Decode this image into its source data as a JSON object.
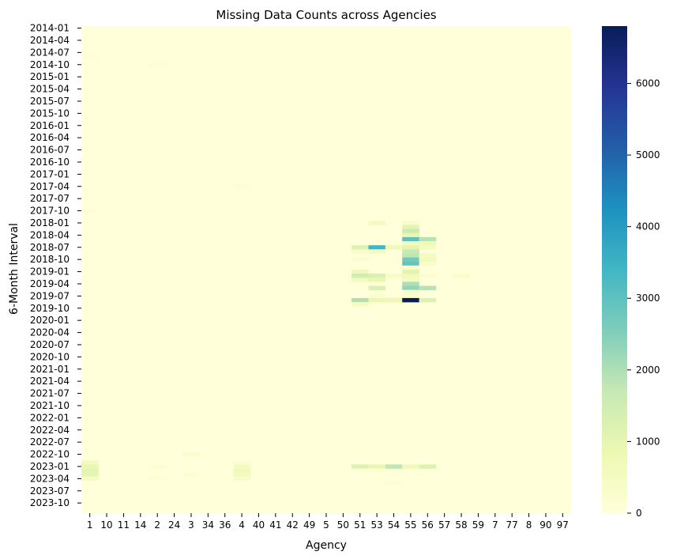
{
  "chart_data": {
    "type": "heatmap",
    "title": "Missing Data Counts across Agencies",
    "xlabel": "Agency",
    "ylabel": "6-Month Interval",
    "x_categories": [
      "1",
      "10",
      "11",
      "14",
      "2",
      "24",
      "3",
      "34",
      "36",
      "4",
      "40",
      "41",
      "42",
      "49",
      "5",
      "50",
      "51",
      "53",
      "54",
      "55",
      "56",
      "57",
      "58",
      "59",
      "7",
      "77",
      "8",
      "90",
      "97"
    ],
    "y_rows": [
      "2014-01",
      "2014-02",
      "2014-03",
      "2014-04",
      "2014-05",
      "2014-06",
      "2014-07",
      "2014-08",
      "2014-09",
      "2014-10",
      "2014-11",
      "2014-12",
      "2015-01",
      "2015-02",
      "2015-03",
      "2015-04",
      "2015-05",
      "2015-06",
      "2015-07",
      "2015-08",
      "2015-09",
      "2015-10",
      "2015-11",
      "2015-12",
      "2016-01",
      "2016-02",
      "2016-03",
      "2016-04",
      "2016-05",
      "2016-06",
      "2016-07",
      "2016-08",
      "2016-09",
      "2016-10",
      "2016-11",
      "2016-12",
      "2017-01",
      "2017-02",
      "2017-03",
      "2017-04",
      "2017-05",
      "2017-06",
      "2017-07",
      "2017-08",
      "2017-09",
      "2017-10",
      "2017-11",
      "2017-12",
      "2018-01",
      "2018-02",
      "2018-03",
      "2018-04",
      "2018-05",
      "2018-06",
      "2018-07",
      "2018-08",
      "2018-09",
      "2018-10",
      "2018-11",
      "2018-12",
      "2019-01",
      "2019-02",
      "2019-03",
      "2019-04",
      "2019-05",
      "2019-06",
      "2019-07",
      "2019-08",
      "2019-09",
      "2019-10",
      "2019-11",
      "2019-12",
      "2020-01",
      "2020-02",
      "2020-03",
      "2020-04",
      "2020-05",
      "2020-06",
      "2020-07",
      "2020-08",
      "2020-09",
      "2020-10",
      "2020-11",
      "2020-12",
      "2021-01",
      "2021-02",
      "2021-03",
      "2021-04",
      "2021-05",
      "2021-06",
      "2021-07",
      "2021-08",
      "2021-09",
      "2021-10",
      "2021-11",
      "2021-12",
      "2022-01",
      "2022-02",
      "2022-03",
      "2022-04",
      "2022-05",
      "2022-06",
      "2022-07",
      "2022-08",
      "2022-09",
      "2022-10",
      "2022-11",
      "2022-12",
      "2023-01",
      "2023-02",
      "2023-03",
      "2023-04",
      "2023-05",
      "2023-06",
      "2023-07",
      "2023-08",
      "2023-09",
      "2023-10",
      "2023-11",
      "2023-12"
    ],
    "y_tick_labels": [
      "2014-01",
      "2014-04",
      "2014-07",
      "2014-10",
      "2015-01",
      "2015-04",
      "2015-07",
      "2015-10",
      "2016-01",
      "2016-04",
      "2016-07",
      "2016-10",
      "2017-01",
      "2017-04",
      "2017-07",
      "2017-10",
      "2018-01",
      "2018-04",
      "2018-07",
      "2018-10",
      "2019-01",
      "2019-04",
      "2019-07",
      "2019-10",
      "2020-01",
      "2020-04",
      "2020-07",
      "2020-10",
      "2021-01",
      "2021-04",
      "2021-07",
      "2021-10",
      "2022-01",
      "2022-04",
      "2022-07",
      "2022-10",
      "2023-01",
      "2023-04",
      "2023-07",
      "2023-10"
    ],
    "colorbar": {
      "min": 0,
      "max": 6800,
      "ticks": [
        0,
        1000,
        2000,
        3000,
        4000,
        5000,
        6000
      ],
      "colormap": "YlGnBu"
    },
    "default_value": 0,
    "cells": [
      {
        "row": "2014-08",
        "col": "1",
        "value": 80
      },
      {
        "row": "2014-10",
        "col": "2",
        "value": 100
      },
      {
        "row": "2017-04",
        "col": "4",
        "value": 80
      },
      {
        "row": "2017-10",
        "col": "1",
        "value": 80
      },
      {
        "row": "2018-01",
        "col": "53",
        "value": 500
      },
      {
        "row": "2018-01",
        "col": "55",
        "value": 350
      },
      {
        "row": "2018-02",
        "col": "55",
        "value": 1100
      },
      {
        "row": "2018-03",
        "col": "55",
        "value": 1600
      },
      {
        "row": "2018-04",
        "col": "55",
        "value": 900
      },
      {
        "row": "2018-05",
        "col": "55",
        "value": 3000
      },
      {
        "row": "2018-05",
        "col": "56",
        "value": 1900
      },
      {
        "row": "2018-06",
        "col": "55",
        "value": 500
      },
      {
        "row": "2018-06",
        "col": "56",
        "value": 700
      },
      {
        "row": "2018-07",
        "col": "51",
        "value": 1200
      },
      {
        "row": "2018-07",
        "col": "53",
        "value": 3400
      },
      {
        "row": "2018-07",
        "col": "54",
        "value": 700
      },
      {
        "row": "2018-07",
        "col": "55",
        "value": 1000
      },
      {
        "row": "2018-07",
        "col": "56",
        "value": 500
      },
      {
        "row": "2018-08",
        "col": "51",
        "value": 350
      },
      {
        "row": "2018-08",
        "col": "53",
        "value": 500
      },
      {
        "row": "2018-08",
        "col": "55",
        "value": 1700
      },
      {
        "row": "2018-09",
        "col": "55",
        "value": 1800
      },
      {
        "row": "2018-09",
        "col": "56",
        "value": 500
      },
      {
        "row": "2018-10",
        "col": "51",
        "value": 200
      },
      {
        "row": "2018-10",
        "col": "55",
        "value": 2700
      },
      {
        "row": "2018-10",
        "col": "56",
        "value": 600
      },
      {
        "row": "2018-11",
        "col": "55",
        "value": 2900
      },
      {
        "row": "2018-11",
        "col": "56",
        "value": 300
      },
      {
        "row": "2018-12",
        "col": "55",
        "value": 250
      },
      {
        "row": "2019-01",
        "col": "51",
        "value": 700
      },
      {
        "row": "2019-01",
        "col": "55",
        "value": 1100
      },
      {
        "row": "2019-02",
        "col": "51",
        "value": 1500
      },
      {
        "row": "2019-02",
        "col": "53",
        "value": 1300
      },
      {
        "row": "2019-02",
        "col": "54",
        "value": 400
      },
      {
        "row": "2019-02",
        "col": "55",
        "value": 700
      },
      {
        "row": "2019-02",
        "col": "56",
        "value": 200
      },
      {
        "row": "2019-02",
        "col": "58",
        "value": 300
      },
      {
        "row": "2019-03",
        "col": "51",
        "value": 600
      },
      {
        "row": "2019-03",
        "col": "53",
        "value": 900
      },
      {
        "row": "2019-03",
        "col": "55",
        "value": 500
      },
      {
        "row": "2019-04",
        "col": "55",
        "value": 2000
      },
      {
        "row": "2019-05",
        "col": "53",
        "value": 1300
      },
      {
        "row": "2019-05",
        "col": "55",
        "value": 2300
      },
      {
        "row": "2019-05",
        "col": "56",
        "value": 1900
      },
      {
        "row": "2019-06",
        "col": "55",
        "value": 300
      },
      {
        "row": "2019-07",
        "col": "53",
        "value": 200
      },
      {
        "row": "2019-07",
        "col": "55",
        "value": 250
      },
      {
        "row": "2019-08",
        "col": "51",
        "value": 2000
      },
      {
        "row": "2019-08",
        "col": "53",
        "value": 900
      },
      {
        "row": "2019-08",
        "col": "54",
        "value": 800
      },
      {
        "row": "2019-08",
        "col": "55",
        "value": 6800
      },
      {
        "row": "2019-08",
        "col": "56",
        "value": 1200
      },
      {
        "row": "2019-09",
        "col": "51",
        "value": 500
      },
      {
        "row": "2022-10",
        "col": "3",
        "value": 300
      },
      {
        "row": "2022-12",
        "col": "1",
        "value": 600
      },
      {
        "row": "2022-12",
        "col": "4",
        "value": 150
      },
      {
        "row": "2023-01",
        "col": "1",
        "value": 900
      },
      {
        "row": "2023-01",
        "col": "2",
        "value": 150
      },
      {
        "row": "2023-01",
        "col": "4",
        "value": 500
      },
      {
        "row": "2023-01",
        "col": "51",
        "value": 1200
      },
      {
        "row": "2023-01",
        "col": "53",
        "value": 900
      },
      {
        "row": "2023-01",
        "col": "54",
        "value": 1800
      },
      {
        "row": "2023-01",
        "col": "55",
        "value": 700
      },
      {
        "row": "2023-01",
        "col": "56",
        "value": 1200
      },
      {
        "row": "2023-02",
        "col": "1",
        "value": 1100
      },
      {
        "row": "2023-02",
        "col": "4",
        "value": 700
      },
      {
        "row": "2023-02",
        "col": "51",
        "value": 100
      },
      {
        "row": "2023-02",
        "col": "53",
        "value": 100
      },
      {
        "row": "2023-03",
        "col": "1",
        "value": 1000
      },
      {
        "row": "2023-03",
        "col": "3",
        "value": 150
      },
      {
        "row": "2023-03",
        "col": "4",
        "value": 600
      },
      {
        "row": "2023-04",
        "col": "1",
        "value": 400
      },
      {
        "row": "2023-04",
        "col": "2",
        "value": 100
      },
      {
        "row": "2023-04",
        "col": "4",
        "value": 350
      },
      {
        "row": "2023-05",
        "col": "54",
        "value": 100
      }
    ]
  }
}
